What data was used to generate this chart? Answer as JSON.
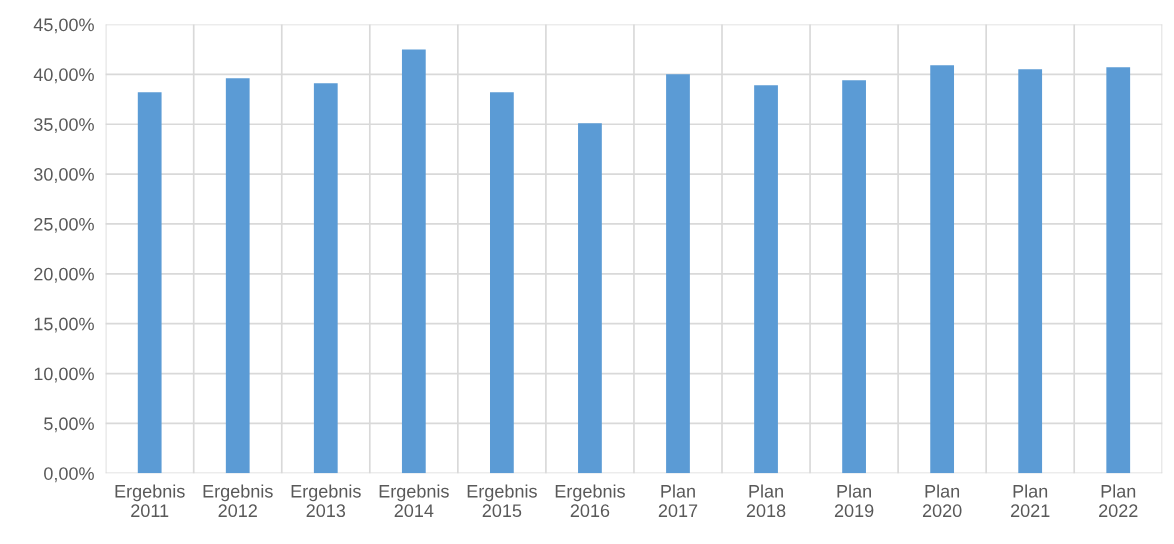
{
  "chart_data": {
    "type": "bar",
    "categories": [
      "Ergebnis\n2011",
      "Ergebnis\n2012",
      "Ergebnis\n2013",
      "Ergebnis\n2014",
      "Ergebnis\n2015",
      "Ergebnis\n2016",
      "Plan\n2017",
      "Plan\n2018",
      "Plan\n2019",
      "Plan\n2020",
      "Plan\n2021",
      "Plan\n2022"
    ],
    "values": [
      38.2,
      39.6,
      39.1,
      42.5,
      38.2,
      35.1,
      40.0,
      38.9,
      39.4,
      40.9,
      40.5,
      40.7
    ],
    "color": "#5b9bd5",
    "ylim": [
      0,
      45
    ],
    "yticks": [
      {
        "value": 0,
        "label": "0,00%"
      },
      {
        "value": 5,
        "label": "5,00%"
      },
      {
        "value": 10,
        "label": "10,00%"
      },
      {
        "value": 15,
        "label": "15,00%"
      },
      {
        "value": 20,
        "label": "20,00%"
      },
      {
        "value": 25,
        "label": "25,00%"
      },
      {
        "value": 30,
        "label": "30,00%"
      },
      {
        "value": 35,
        "label": "35,00%"
      },
      {
        "value": 40,
        "label": "40,00%"
      },
      {
        "value": 45,
        "label": "45,00%"
      }
    ],
    "grid": true
  }
}
